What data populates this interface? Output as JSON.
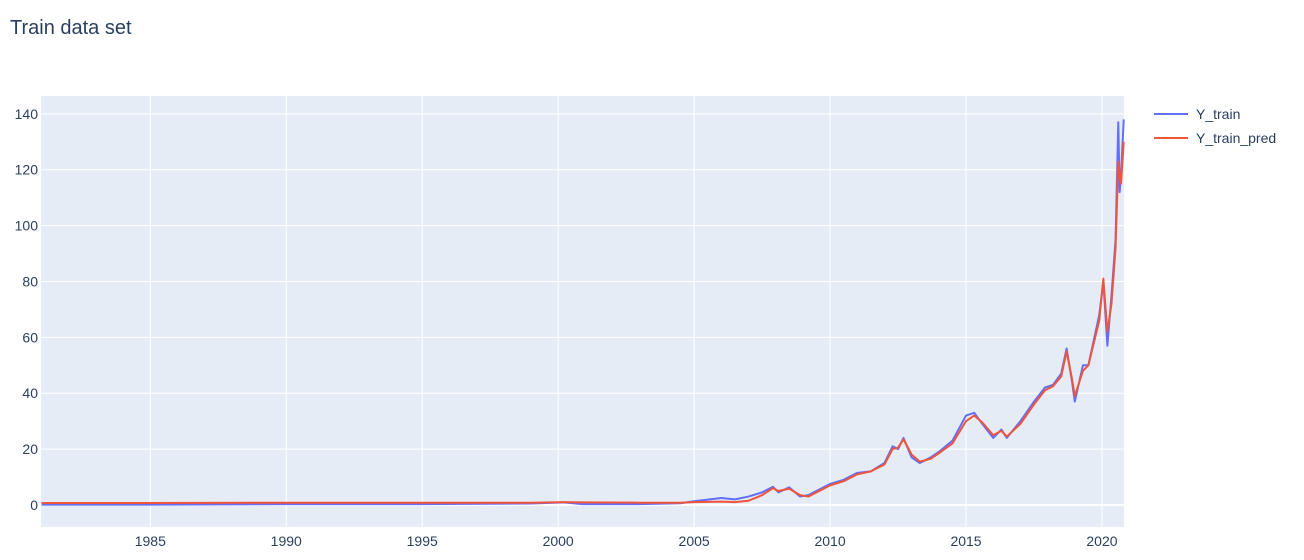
{
  "chart_data": {
    "type": "line",
    "title": "Train data set",
    "x": [
      1981,
      1985,
      1990,
      1995,
      1999,
      2000.2,
      2000.9,
      2003,
      2004.5,
      2005,
      2006,
      2006.5,
      2007,
      2007.5,
      2007.9,
      2008.1,
      2008.5,
      2008.9,
      2009.2,
      2009.7,
      2010,
      2010.5,
      2011,
      2011.5,
      2012,
      2012.3,
      2012.5,
      2012.7,
      2013,
      2013.3,
      2013.7,
      2014,
      2014.5,
      2015,
      2015.3,
      2015.6,
      2016,
      2016.3,
      2016.5,
      2017,
      2017.5,
      2017.9,
      2018.2,
      2018.5,
      2018.7,
      2018.9,
      2019,
      2019.3,
      2019.5,
      2019.9,
      2020.05,
      2020.2,
      2020.35,
      2020.5,
      2020.6,
      2020.65,
      2020.7,
      2020.8
    ],
    "series": [
      {
        "name": "Y_train",
        "color": "#636efa",
        "values": [
          0.1,
          0.1,
          0.3,
          0.3,
          0.5,
          0.9,
          0.3,
          0.3,
          0.6,
          1.3,
          2.5,
          2.0,
          3.0,
          4.5,
          6.5,
          4.5,
          6.3,
          3.0,
          3.5,
          6.0,
          7.5,
          9.0,
          11.5,
          12.0,
          15,
          21,
          20,
          24,
          17,
          15,
          17,
          19,
          23,
          32,
          33,
          29,
          24,
          27,
          24,
          30,
          37,
          42,
          43,
          47,
          56,
          44,
          37,
          50,
          50,
          68,
          80,
          57,
          75,
          95,
          137,
          112,
          118,
          138
        ]
      },
      {
        "name": "Y_train_pred",
        "color": "#ef553b",
        "values": [
          0.7,
          0.7,
          0.8,
          0.8,
          0.8,
          1.0,
          0.9,
          0.8,
          0.8,
          1.0,
          1.2,
          1.0,
          1.5,
          3.5,
          6.0,
          5.0,
          5.8,
          3.5,
          3.0,
          5.5,
          7.0,
          8.5,
          11.0,
          12.0,
          14.5,
          20,
          20.5,
          23.5,
          18,
          15.5,
          16.5,
          18.5,
          22,
          30,
          32,
          29.5,
          25,
          26.5,
          24.5,
          29,
          36,
          41,
          42.5,
          46,
          55,
          45,
          39,
          48,
          50,
          66,
          81,
          62,
          72,
          92,
          123,
          118,
          115,
          130
        ]
      }
    ],
    "xlim": [
      1980.98,
      2020.81
    ],
    "xticks": [
      1985,
      1990,
      1995,
      2000,
      2005,
      2010,
      2015,
      2020
    ],
    "ylim": [
      -7.9,
      146.4
    ],
    "yticks": [
      0,
      20,
      40,
      60,
      80,
      100,
      120,
      140
    ],
    "grid": true,
    "legend": "right"
  }
}
